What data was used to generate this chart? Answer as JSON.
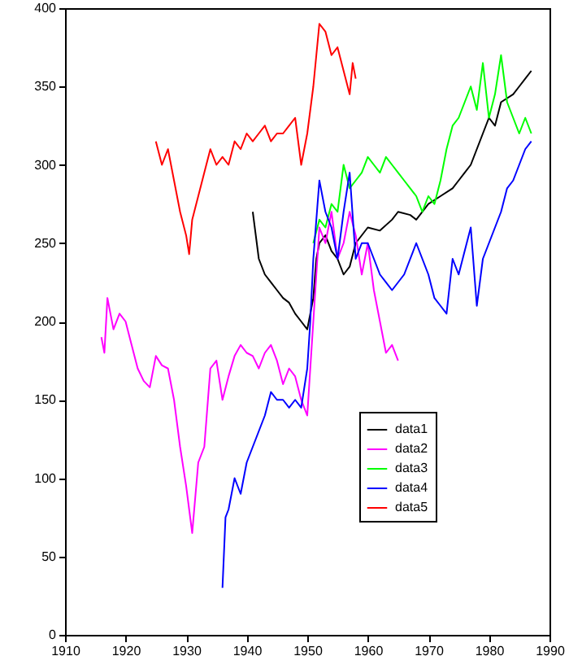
{
  "chart_data": {
    "type": "line",
    "xlim": [
      1910,
      1990
    ],
    "xticks": [
      1910,
      1920,
      1930,
      1940,
      1950,
      1960,
      1970,
      1980,
      1990
    ],
    "ylim": [
      0,
      400
    ],
    "yticks": [
      0,
      50,
      100,
      150,
      200,
      250,
      300,
      350,
      400
    ],
    "grid": false,
    "legend": "bottom right",
    "series": [
      {
        "name": "data1",
        "color": "#000000",
        "x": [
          1941,
          1941.5,
          1942,
          1943,
          1944,
          1945,
          1946,
          1947,
          1948,
          1949,
          1950,
          1950.5,
          1951,
          1951.5,
          1952,
          1953,
          1954,
          1955,
          1956,
          1957,
          1958,
          1960,
          1962,
          1964,
          1965,
          1967,
          1968,
          1970,
          1972,
          1974,
          1975,
          1976,
          1977,
          1978,
          1979,
          1980,
          1981,
          1982,
          1984,
          1985,
          1986,
          1987
        ],
        "values": [
          270,
          255,
          240,
          230,
          225,
          220,
          215,
          212,
          205,
          200,
          195,
          205,
          215,
          240,
          250,
          255,
          245,
          240,
          230,
          235,
          250,
          260,
          258,
          265,
          270,
          268,
          265,
          275,
          280,
          285,
          290,
          295,
          300,
          310,
          320,
          330,
          325,
          340,
          345,
          350,
          355,
          360
        ]
      },
      {
        "name": "data2",
        "color": "#ff00ff",
        "x": [
          1916,
          1916.5,
          1917,
          1918,
          1919,
          1920,
          1921,
          1922,
          1923,
          1924,
          1925,
          1926,
          1927,
          1928,
          1929,
          1930,
          1930.5,
          1931,
          1932,
          1933,
          1934,
          1935,
          1936,
          1937,
          1938,
          1939,
          1940,
          1941,
          1942,
          1943,
          1944,
          1945,
          1946,
          1947,
          1948,
          1949,
          1950,
          1951,
          1952,
          1953,
          1954,
          1955,
          1956,
          1957,
          1958,
          1959,
          1960,
          1961,
          1962,
          1963,
          1964,
          1965
        ],
        "values": [
          190,
          180,
          215,
          195,
          205,
          200,
          185,
          170,
          162,
          158,
          178,
          172,
          170,
          150,
          120,
          95,
          80,
          65,
          110,
          120,
          170,
          175,
          150,
          165,
          178,
          185,
          180,
          178,
          170,
          180,
          185,
          175,
          160,
          170,
          165,
          150,
          140,
          200,
          260,
          250,
          270,
          240,
          250,
          270,
          255,
          230,
          250,
          220,
          200,
          180,
          185,
          175
        ]
      },
      {
        "name": "data3",
        "color": "#00ff00",
        "x": [
          1951,
          1952,
          1953,
          1954,
          1955,
          1956,
          1957,
          1958,
          1959,
          1960,
          1961,
          1962,
          1963,
          1964,
          1965,
          1966,
          1967,
          1968,
          1969,
          1970,
          1971,
          1972,
          1973,
          1974,
          1975,
          1976,
          1977,
          1978,
          1979,
          1980,
          1981,
          1982,
          1983,
          1984,
          1985,
          1986,
          1987
        ],
        "values": [
          250,
          265,
          260,
          275,
          270,
          300,
          285,
          290,
          295,
          305,
          300,
          295,
          305,
          300,
          295,
          290,
          285,
          280,
          270,
          280,
          275,
          290,
          310,
          325,
          330,
          340,
          350,
          335,
          365,
          330,
          345,
          370,
          340,
          330,
          320,
          330,
          320
        ]
      },
      {
        "name": "data4",
        "color": "#0000ff",
        "x": [
          1936,
          1936.5,
          1937,
          1938,
          1939,
          1940,
          1941,
          1942,
          1943,
          1944,
          1945,
          1946,
          1947,
          1948,
          1949,
          1950,
          1950.5,
          1951,
          1952,
          1953,
          1954,
          1955,
          1956,
          1957,
          1958,
          1959,
          1960,
          1961,
          1962,
          1963,
          1964,
          1966,
          1968,
          1969,
          1970,
          1971,
          1972,
          1973,
          1974,
          1975,
          1976,
          1977,
          1978,
          1979,
          1980,
          1981,
          1982,
          1983,
          1984,
          1985,
          1986,
          1987
        ],
        "values": [
          30,
          75,
          80,
          100,
          90,
          110,
          120,
          130,
          140,
          155,
          150,
          150,
          145,
          150,
          145,
          170,
          200,
          240,
          290,
          270,
          260,
          240,
          270,
          295,
          240,
          250,
          250,
          240,
          230,
          225,
          220,
          230,
          250,
          240,
          230,
          215,
          210,
          205,
          240,
          230,
          245,
          260,
          210,
          240,
          250,
          260,
          270,
          285,
          290,
          300,
          310,
          315
        ]
      },
      {
        "name": "data5",
        "color": "#ff0000",
        "x": [
          1925,
          1926,
          1927,
          1928,
          1929,
          1930,
          1930.5,
          1931,
          1932,
          1933,
          1934,
          1935,
          1936,
          1937,
          1938,
          1939,
          1940,
          1941,
          1942,
          1943,
          1944,
          1945,
          1946,
          1947,
          1948,
          1949,
          1950,
          1951,
          1951.5,
          1952,
          1953,
          1954,
          1955,
          1956,
          1957,
          1957.5,
          1958
        ],
        "values": [
          315,
          300,
          310,
          290,
          270,
          255,
          243,
          265,
          280,
          295,
          310,
          300,
          305,
          300,
          315,
          310,
          320,
          315,
          320,
          325,
          315,
          320,
          320,
          325,
          330,
          300,
          320,
          350,
          370,
          390,
          385,
          370,
          375,
          360,
          345,
          365,
          355
        ]
      }
    ]
  }
}
